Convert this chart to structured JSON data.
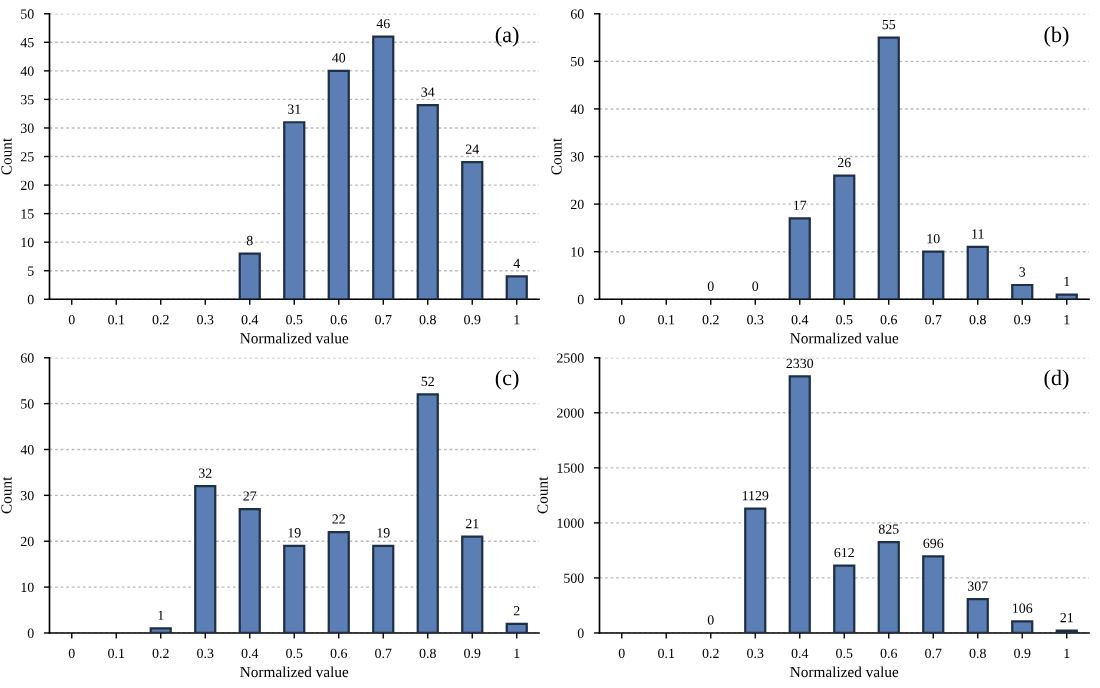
{
  "chart_data": [
    {
      "type": "bar",
      "xlabel": "Normalized value",
      "ylabel": "Count",
      "annotations": [
        "(a)"
      ],
      "categories": [
        "0",
        "0.1",
        "0.2",
        "0.3",
        "0.4",
        "0.5",
        "0.6",
        "0.7",
        "0.8",
        "0.9",
        "1"
      ],
      "values": [
        0,
        0,
        0,
        0,
        8,
        31,
        40,
        46,
        34,
        24,
        4
      ],
      "value_labels": [
        null,
        null,
        null,
        null,
        "8",
        "31",
        "40",
        "46",
        "34",
        "24",
        "4"
      ],
      "color": "#5b7fb4",
      "ylim": [
        0,
        50
      ],
      "yticks": [
        0,
        5,
        10,
        15,
        20,
        25,
        30,
        35,
        40,
        45,
        50
      ],
      "grid": "y"
    },
    {
      "type": "bar",
      "xlabel": "Normalized value",
      "ylabel": "Count",
      "annotations": [
        "(b)"
      ],
      "categories": [
        "0",
        "0.1",
        "0.2",
        "0.3",
        "0.4",
        "0.5",
        "0.6",
        "0.7",
        "0.8",
        "0.9",
        "1"
      ],
      "values": [
        0,
        0,
        0,
        0,
        17,
        26,
        55,
        10,
        11,
        3,
        1
      ],
      "value_labels": [
        null,
        null,
        "0",
        "0",
        "17",
        "26",
        "55",
        "10",
        "11",
        "3",
        "1"
      ],
      "color": "#5b7fb4",
      "ylim": [
        0,
        60
      ],
      "yticks": [
        0,
        10,
        20,
        30,
        40,
        50,
        60
      ],
      "grid": "y"
    },
    {
      "type": "bar",
      "xlabel": "Normalized value",
      "ylabel": "Count",
      "annotations": [
        "(c)"
      ],
      "categories": [
        "0",
        "0.1",
        "0.2",
        "0.3",
        "0.4",
        "0.5",
        "0.6",
        "0.7",
        "0.8",
        "0.9",
        "1"
      ],
      "values": [
        0,
        0,
        1,
        32,
        27,
        19,
        22,
        19,
        52,
        21,
        2
      ],
      "value_labels": [
        null,
        null,
        "1",
        "32",
        "27",
        "19",
        "22",
        "19",
        "52",
        "21",
        "2"
      ],
      "color": "#5b7fb4",
      "ylim": [
        0,
        60
      ],
      "yticks": [
        0,
        10,
        20,
        30,
        40,
        50,
        60
      ],
      "grid": "y"
    },
    {
      "type": "bar",
      "xlabel": "Normalized value",
      "ylabel": "Count",
      "annotations": [
        "(d)"
      ],
      "categories": [
        "0",
        "0.1",
        "0.2",
        "0.3",
        "0.4",
        "0.5",
        "0.6",
        "0.7",
        "0.8",
        "0.9",
        "1"
      ],
      "values": [
        0,
        0,
        0,
        1129,
        2330,
        612,
        825,
        696,
        307,
        106,
        21
      ],
      "value_labels": [
        null,
        null,
        "0",
        "1129",
        "2330",
        "612",
        "825",
        "696",
        "307",
        "106",
        "21"
      ],
      "color": "#5b7fb4",
      "ylim": [
        0,
        2500
      ],
      "yticks": [
        0,
        500,
        1000,
        1500,
        2000,
        2500
      ],
      "grid": "y"
    }
  ]
}
